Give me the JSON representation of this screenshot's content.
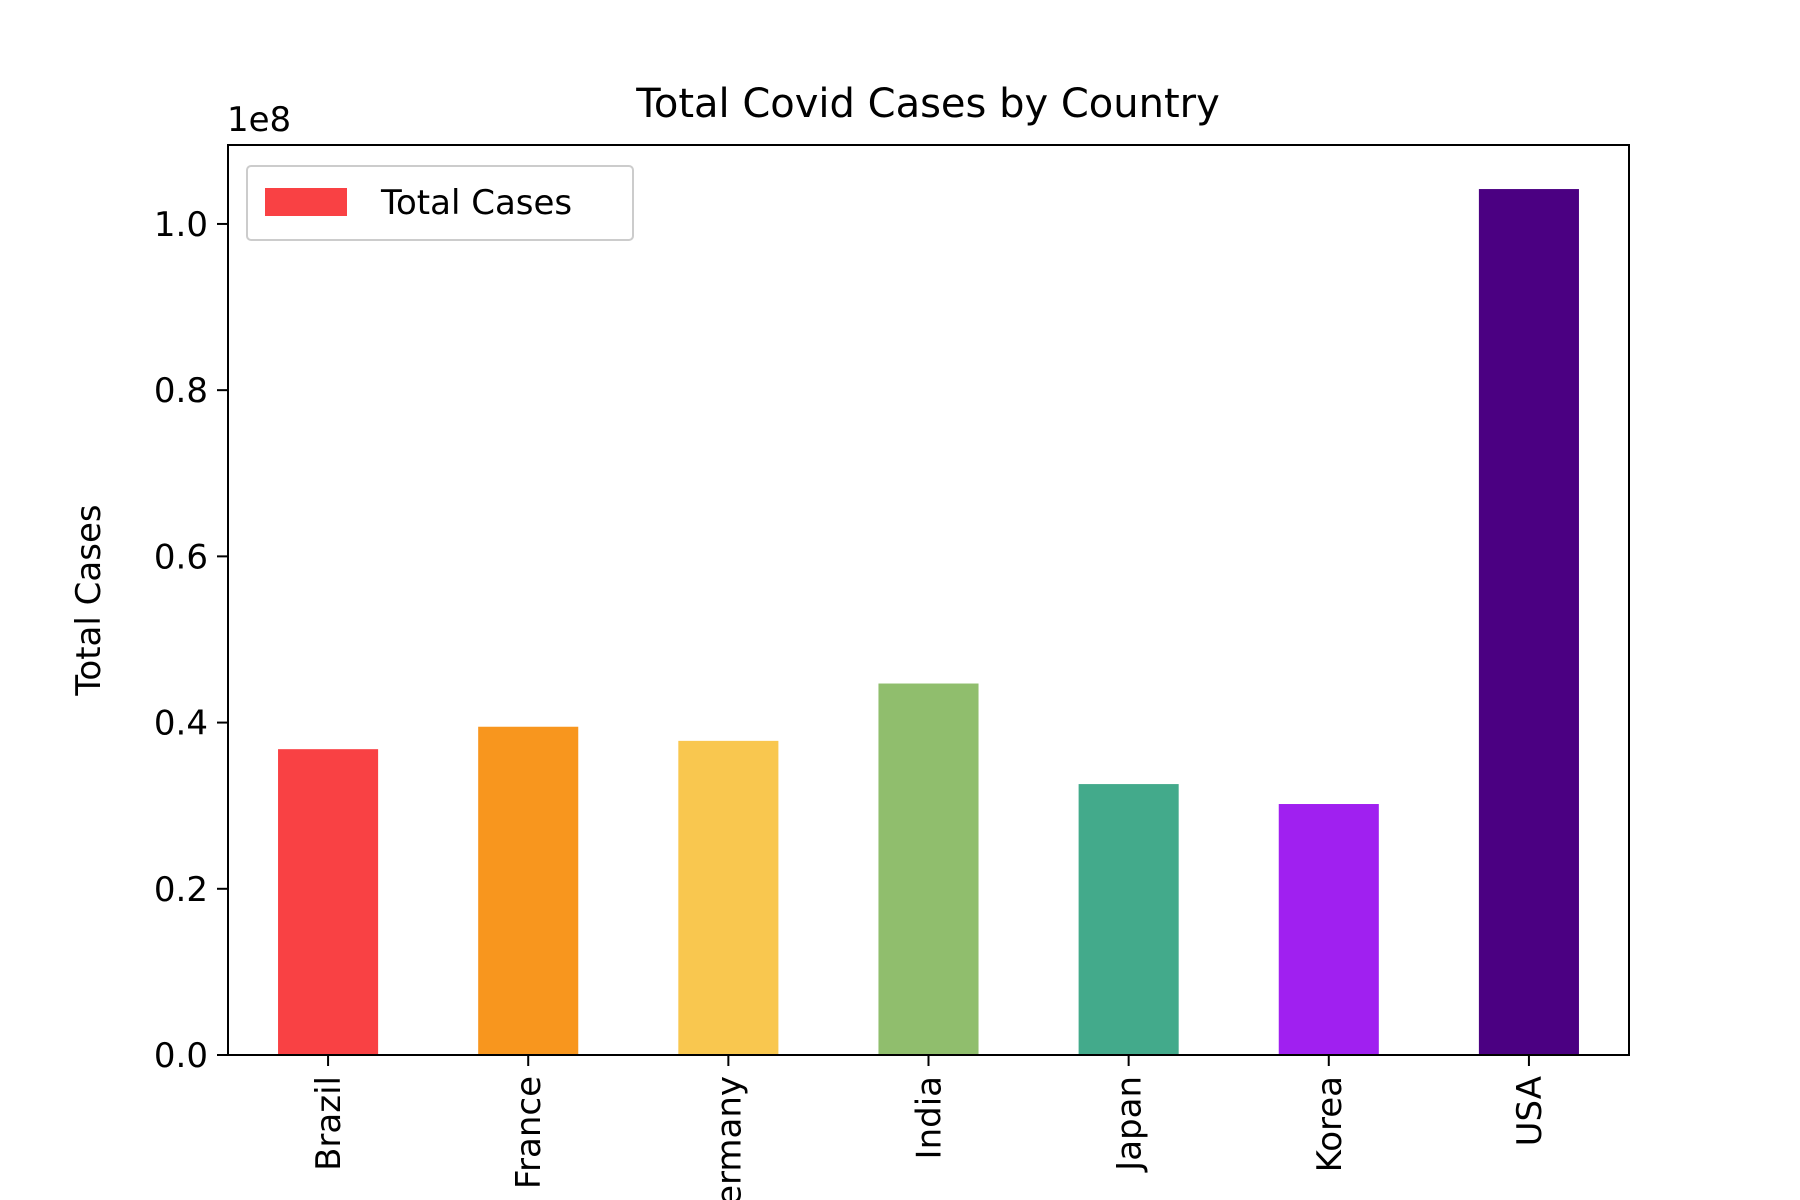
{
  "chart_data": {
    "type": "bar",
    "title": "Total Covid Cases by Country",
    "xlabel": "",
    "ylabel": "Total Cases",
    "scale_label": "1e8",
    "categories": [
      "Brazil",
      "France",
      "Germany",
      "India",
      "Japan",
      "Korea",
      "USA"
    ],
    "series": [
      {
        "name": "Total Cases",
        "values": [
          36800000,
          39500000,
          37800000,
          44700000,
          32600000,
          30200000,
          104200000
        ],
        "colors": [
          "#F94144",
          "#F8961E",
          "#F9C74F",
          "#90BE6D",
          "#43AA8B",
          "#A020F0",
          "#4B0082"
        ]
      }
    ],
    "ylim": [
      0,
      109500000
    ],
    "yticks": [
      0,
      20000000,
      40000000,
      60000000,
      80000000,
      100000000
    ],
    "ytick_labels": [
      "0.0",
      "0.2",
      "0.4",
      "0.6",
      "0.8",
      "1.0"
    ],
    "legend": {
      "position": "top-left",
      "label": "Total Cases",
      "color": "#F94144"
    },
    "grid": false
  }
}
